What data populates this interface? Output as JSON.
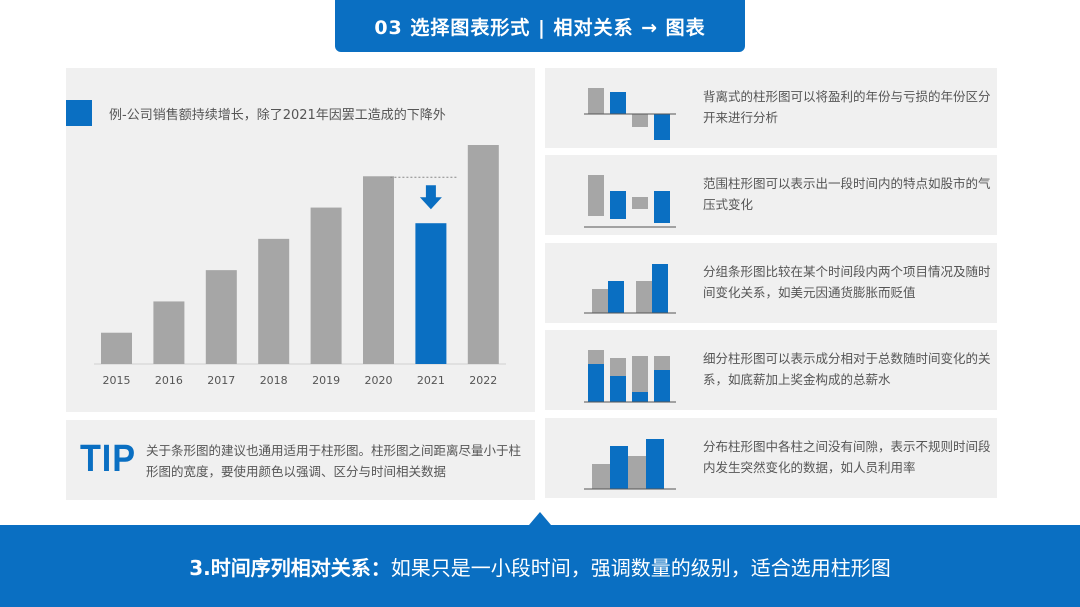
{
  "header": {
    "title": "03  选择图表形式 | 相对关系 → 图表"
  },
  "chart_note": "例-公司销售额持续增长，除了2021年因罢工造成的下降外",
  "chart_data": {
    "type": "bar",
    "categories": [
      "2015",
      "2016",
      "2017",
      "2018",
      "2019",
      "2020",
      "2021",
      "2022"
    ],
    "values": [
      1,
      2,
      3,
      4,
      5,
      6,
      4.5,
      7
    ],
    "highlight_index": 6,
    "highlight_color": "#0a6fc2",
    "bar_color": "#a6a6a6"
  },
  "tip": {
    "logo": "TIP",
    "text": "关于条形图的建议也通用适用于柱形图。柱形图之间距离尽量小于柱形图的宽度，要使用颜色以强调、区分与时间相关数据"
  },
  "cards": [
    {
      "icon": "diverging-bar-chart-icon",
      "text": "背离式的柱形图可以将盈利的年份与亏损的年份区分开来进行分析"
    },
    {
      "icon": "range-bar-chart-icon",
      "text": "范围柱形图可以表示出一段时间内的特点如股市的气压式变化"
    },
    {
      "icon": "grouped-bar-chart-icon",
      "text": "分组条形图比较在某个时间段内两个项目情况及随时间变化关系，如美元因通货膨胀而贬值"
    },
    {
      "icon": "stacked-bar-chart-icon",
      "text": "细分柱形图可以表示成分相对于总数随时间变化的关系，如底薪加上奖金构成的总薪水"
    },
    {
      "icon": "distribution-bar-chart-icon",
      "text": "分布柱形图中各柱之间没有间隙，表示不规则时间段内发生突然变化的数据，如人员利用率"
    }
  ],
  "footer": {
    "bold": "3.时间序列相对关系：",
    "text": "如果只是一小段时间，强调数量的级别，适合选用柱形图"
  },
  "colors": {
    "primary": "#0a6fc2",
    "gray": "#a6a6a6",
    "panel": "#f0f0f0"
  }
}
